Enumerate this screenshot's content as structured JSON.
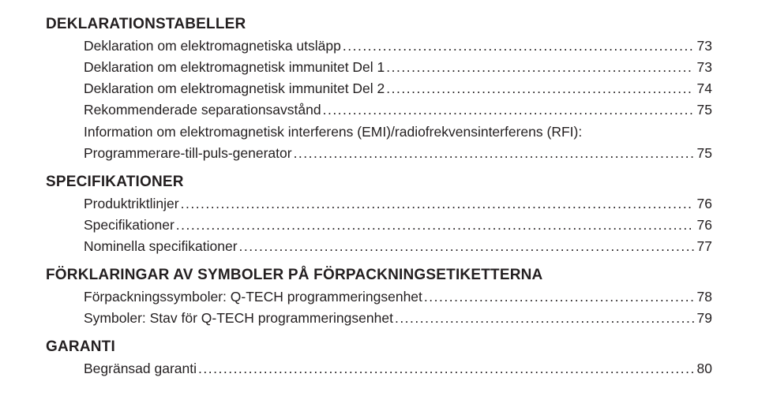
{
  "sections": [
    {
      "heading": "DEKLARATIONSTABELLER",
      "entries": [
        {
          "label": "Deklaration om elektromagnetiska utsläpp",
          "page": "73"
        },
        {
          "label": "Deklaration om elektromagnetisk immunitet Del 1",
          "page": "73"
        },
        {
          "label": "Deklaration om elektromagnetisk immunitet Del 2",
          "page": "74"
        },
        {
          "label": "Rekommenderade separationsavstånd",
          "page": "75"
        },
        {
          "label_line1": "Information om elektromagnetisk interferens (EMI)/radiofrekvensinterferens (RFI):",
          "label_line2": "Programmerare-till-puls-generator",
          "page": "75"
        }
      ]
    },
    {
      "heading": "SPECIFIKATIONER",
      "entries": [
        {
          "label": "Produktriktlinjer",
          "page": "76"
        },
        {
          "label": "Specifikationer",
          "page": "76"
        },
        {
          "label": "Nominella specifikationer",
          "page": "77"
        }
      ]
    },
    {
      "heading": "FÖRKLARINGAR AV SYMBOLER PÅ FÖRPACKNINGSETIKETTERNA",
      "entries": [
        {
          "label": "Förpackningssymboler: Q-TECH programmeringsenhet",
          "page": "78"
        },
        {
          "label": "Symboler: Stav för Q-TECH programmeringsenhet",
          "page": "79"
        }
      ]
    },
    {
      "heading": "GARANTI",
      "entries": [
        {
          "label": "Begränsad garanti",
          "page": "80"
        }
      ]
    }
  ],
  "leader": "...................................................................................................................................................................................................................................................."
}
